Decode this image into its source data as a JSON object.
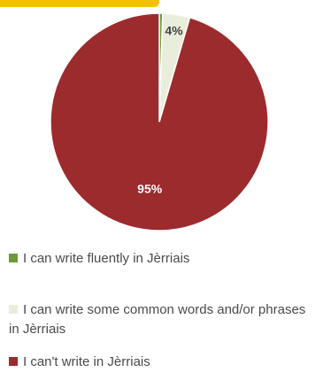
{
  "chart_data": {
    "type": "pie",
    "title": "",
    "categories": [
      "I can write fluently in Jèrriais",
      "I can write some common words and/or phrases in Jèrriais",
      "I can't write in Jèrriais"
    ],
    "values": [
      0.5,
      4,
      95
    ],
    "data_labels": [
      "",
      "4%",
      "95%"
    ],
    "colors": [
      "#6a9a3a",
      "#e9eedc",
      "#9c2b2e"
    ],
    "legend": {
      "placement": "bottom"
    }
  }
}
